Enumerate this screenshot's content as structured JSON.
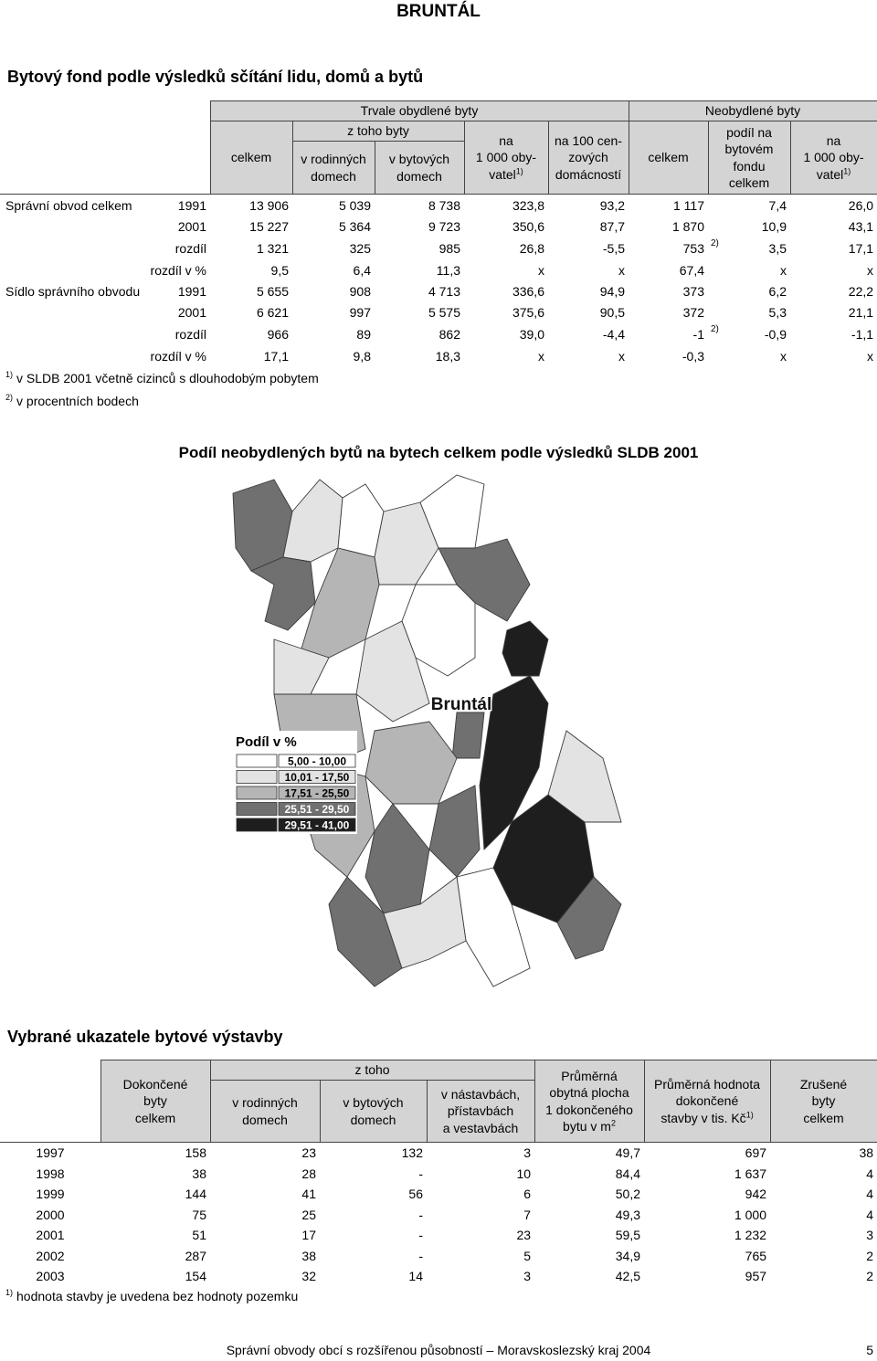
{
  "title": "BRUNTÁL",
  "section1": {
    "heading": "Bytový fond podle výsledků sčítání lidu, domů a bytů",
    "table": {
      "group_headers": [
        "Trvale obydlené byty",
        "Neobydlené byty"
      ],
      "subgroup_header": "z toho byty",
      "headers": [
        {
          "text": "celkem"
        },
        {
          "text": "v rodinných\ndomech"
        },
        {
          "text": "v bytových\ndomech"
        },
        {
          "text": "na\n1 000 oby-\nvatel",
          "sup": "1)"
        },
        {
          "text": "na 100 cen-\nzových\ndomácností"
        },
        {
          "text": "celkem"
        },
        {
          "text": "podíl na\nbytovém\nfondu\ncelkem"
        },
        {
          "text": "na\n1 000 oby-\nvatel",
          "sup": "1)"
        }
      ],
      "rows": [
        {
          "label": "Správní obvod celkem",
          "year": "1991",
          "cells": [
            "13 906",
            "5 039",
            "8 738",
            "323,8",
            "93,2",
            "1 117",
            "7,4",
            "26,0"
          ]
        },
        {
          "year": "2001",
          "cells": [
            "15 227",
            "5 364",
            "9 723",
            "350,6",
            "87,7",
            "1 870",
            "10,9",
            "43,1"
          ]
        },
        {
          "label": "rozdíl",
          "cells": [
            "1 321",
            "325",
            "985",
            "26,8",
            "-5,5",
            "753",
            "3,5",
            "17,1"
          ],
          "note": "2)"
        },
        {
          "label": "rozdíl v %",
          "cells": [
            "9,5",
            "6,4",
            "11,3",
            "x",
            "x",
            "67,4",
            "x",
            "x"
          ]
        },
        {
          "label": "Sídlo správního obvodu",
          "year": "1991",
          "cells": [
            "5 655",
            "908",
            "4 713",
            "336,6",
            "94,9",
            "373",
            "6,2",
            "22,2"
          ]
        },
        {
          "year": "2001",
          "cells": [
            "6 621",
            "997",
            "5 575",
            "375,6",
            "90,5",
            "372",
            "5,3",
            "21,1"
          ]
        },
        {
          "label": "rozdíl",
          "cells": [
            "966",
            "89",
            "862",
            "39,0",
            "-4,4",
            "-1",
            "-0,9",
            "-1,1"
          ],
          "note": "2)"
        },
        {
          "label": "rozdíl v %",
          "cells": [
            "17,1",
            "9,8",
            "18,3",
            "x",
            "x",
            "-0,3",
            "x",
            "x"
          ]
        }
      ],
      "footnotes": [
        {
          "mark": "1)",
          "text": "v SLDB 2001 včetně cizinců s dlouhodobým pobytem"
        },
        {
          "mark": "2)",
          "text": "v procentních bodech"
        }
      ]
    }
  },
  "map": {
    "title": "Podíl neobydlených bytů na bytech celkem podle výsledků SLDB 2001",
    "city_label": "Bruntál",
    "legend_title": "Podíl v %",
    "legend": [
      {
        "label": "5,00 - 10,00",
        "color": "#ffffff"
      },
      {
        "label": "10,01 - 17,50",
        "color": "#e3e3e3"
      },
      {
        "label": "17,51 - 25,50",
        "color": "#b5b5b5"
      },
      {
        "label": "25,51 - 29,50",
        "color": "#707070"
      },
      {
        "label": "29,51 - 41,00",
        "color": "#1e1e1e"
      }
    ]
  },
  "section2": {
    "heading": "Vybrané ukazatele bytové výstavby",
    "table": {
      "headers": [
        {
          "text": "Dokončené\nbyty\ncelkem"
        },
        {
          "text": "v rodinných\ndomech"
        },
        {
          "text": "v bytových\ndomech"
        },
        {
          "text": "v nástavbách,\npřístavbách\na vestavbách"
        },
        {
          "text": "Průměrná\nobytná plocha\n1 dokončeného\nbytu v m",
          "sup": "2"
        },
        {
          "text": "Průměrná hodnota\ndokončené\nstavby v tis. Kč",
          "sup": "1)"
        },
        {
          "text": "Zrušené\nbyty\ncelkem"
        }
      ],
      "subgroup_header": "z toho",
      "rows": [
        {
          "year": "1997",
          "cells": [
            "158",
            "23",
            "132",
            "3",
            "49,7",
            "697",
            "38"
          ]
        },
        {
          "year": "1998",
          "cells": [
            "38",
            "28",
            "-",
            "10",
            "84,4",
            "1 637",
            "4"
          ]
        },
        {
          "year": "1999",
          "cells": [
            "144",
            "41",
            "56",
            "6",
            "50,2",
            "942",
            "4"
          ]
        },
        {
          "year": "2000",
          "cells": [
            "75",
            "25",
            "-",
            "7",
            "49,3",
            "1 000",
            "4"
          ]
        },
        {
          "year": "2001",
          "cells": [
            "51",
            "17",
            "-",
            "23",
            "59,5",
            "1 232",
            "3"
          ]
        },
        {
          "year": "2002",
          "cells": [
            "287",
            "38",
            "-",
            "5",
            "34,9",
            "765",
            "2"
          ]
        },
        {
          "year": "2003",
          "cells": [
            "154",
            "32",
            "14",
            "3",
            "42,5",
            "957",
            "2"
          ]
        }
      ],
      "footnotes": [
        {
          "mark": "1)",
          "text": "hodnota stavby je uvedena bez hodnoty pozemku"
        }
      ]
    }
  },
  "footer": {
    "text": "Správní obvody obcí s rozšířenou působností – Moravskoslezský kraj 2004",
    "page": "5"
  }
}
